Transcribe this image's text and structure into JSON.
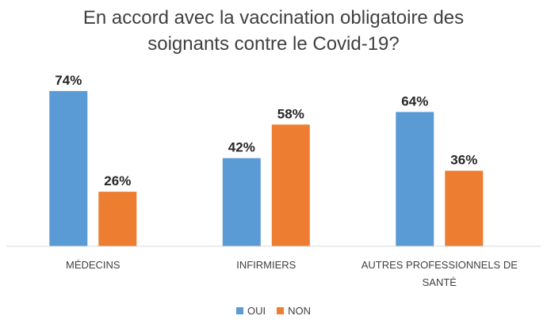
{
  "chart_data": {
    "type": "bar",
    "title_lines": [
      "En accord avec la vaccination obligatoire des",
      "soignants contre le Covid-19?"
    ],
    "categories": [
      [
        "MÉDECINS"
      ],
      [
        "INFIRMIERS"
      ],
      [
        "AUTRES PROFESSIONNELS DE",
        "SANTÉ"
      ]
    ],
    "series": [
      {
        "name": "OUI",
        "color": "#5B9BD5",
        "values": [
          74,
          42,
          64
        ]
      },
      {
        "name": "NON",
        "color": "#ED7D31",
        "values": [
          26,
          58,
          36
        ]
      }
    ],
    "value_suffix": "%",
    "ylim": [
      0,
      80
    ],
    "grid": false,
    "legend_position": "bottom"
  }
}
